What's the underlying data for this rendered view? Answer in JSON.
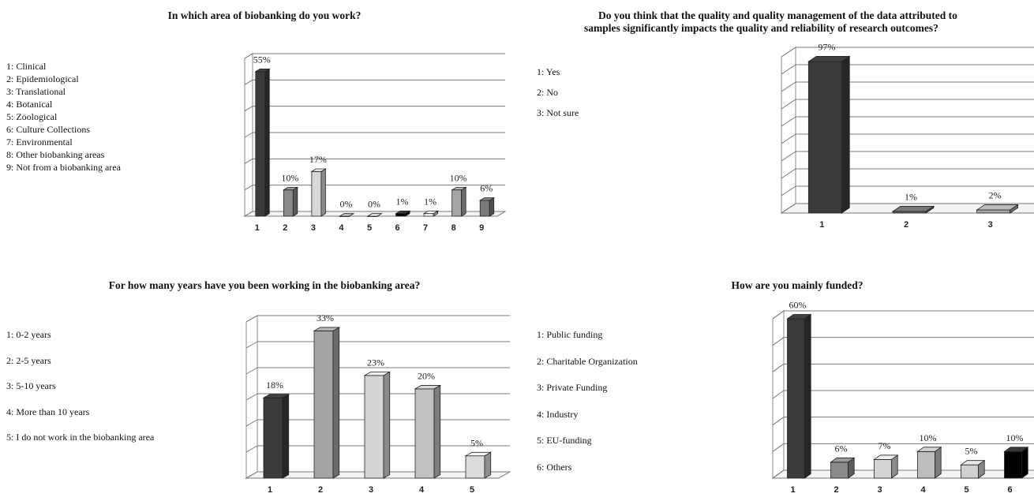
{
  "chart_data": [
    {
      "type": "bar",
      "title": "In which area of biobanking do you work?",
      "legend_entries": [
        "1: Clinical",
        "2: Epidemiological",
        "3: Translational",
        "4: Botanical",
        "5: Zoological",
        "6: Culture Collections",
        "7: Environmental",
        "8: Other biobanking areas",
        "9: Not from a biobanking area"
      ],
      "categories": [
        "1",
        "2",
        "3",
        "4",
        "5",
        "6",
        "7",
        "8",
        "9"
      ],
      "values": [
        55,
        10,
        17,
        0,
        0,
        1,
        1,
        10,
        6
      ],
      "value_labels": [
        "55%",
        "10%",
        "17%",
        "0%",
        "0%",
        "1%",
        "1%",
        "10%",
        "6%"
      ],
      "colors": [
        "#3a3a3a",
        "#8a8a8a",
        "#d6d6d6",
        "#b0b0b0",
        "#cfcfcf",
        "#000000",
        "#ffffff",
        "#a6a6a6",
        "#7a7a7a"
      ],
      "ylim": [
        0,
        60
      ],
      "grid": true,
      "legend_position": "left"
    },
    {
      "type": "bar",
      "title": "Do you think that the quality and quality management of the data attributed to samples significantly impacts the quality and reliability of research outcomes?",
      "title_lines": [
        "Do you think that the quality and quality management of the data attributed to",
        "samples significantly impacts the quality and reliability of research outcomes?"
      ],
      "legend_entries": [
        "1: Yes",
        "2: No",
        "3: Not sure"
      ],
      "categories": [
        "1",
        "2",
        "3"
      ],
      "values": [
        97,
        1,
        2
      ],
      "value_labels": [
        "97%",
        "1%",
        "2%"
      ],
      "colors": [
        "#3a3a3a",
        "#6a6a6a",
        "#a8a8a8"
      ],
      "ylim": [
        0,
        100
      ],
      "grid": true,
      "legend_position": "left"
    },
    {
      "type": "bar",
      "title": "For how many years have you been working in the biobanking area?",
      "legend_entries": [
        "1: 0-2 years",
        "2: 2-5 years",
        "3: 5-10 years",
        "4: More than 10 years",
        "5: I do not work in the biobanking area"
      ],
      "categories": [
        "1",
        "2",
        "3",
        "4",
        "5"
      ],
      "values": [
        18,
        33,
        23,
        20,
        5
      ],
      "value_labels": [
        "18%",
        "33%",
        "23%",
        "20%",
        "5%"
      ],
      "colors": [
        "#3a3a3a",
        "#a4a4a4",
        "#d6d6d6",
        "#c2c2c2",
        "#dcdcdc"
      ],
      "ylim": [
        0,
        35
      ],
      "grid": true,
      "legend_position": "left"
    },
    {
      "type": "bar",
      "title": "How are you mainly funded?",
      "legend_entries": [
        "1: Public funding",
        "2: Charitable Organization",
        "3: Private Funding",
        "4: Industry",
        "5: EU-funding",
        "6: Others"
      ],
      "categories": [
        "1",
        "2",
        "3",
        "4",
        "5",
        "6"
      ],
      "values": [
        60,
        6,
        7,
        10,
        5,
        10
      ],
      "value_labels": [
        "60%",
        "6%",
        "7%",
        "10%",
        "5%",
        "10%"
      ],
      "colors": [
        "#3a3a3a",
        "#8a8a8a",
        "#d6d6d6",
        "#bdbdbd",
        "#d0d0d0",
        "#000000"
      ],
      "ylim": [
        0,
        60
      ],
      "grid": true,
      "legend_position": "left"
    }
  ]
}
